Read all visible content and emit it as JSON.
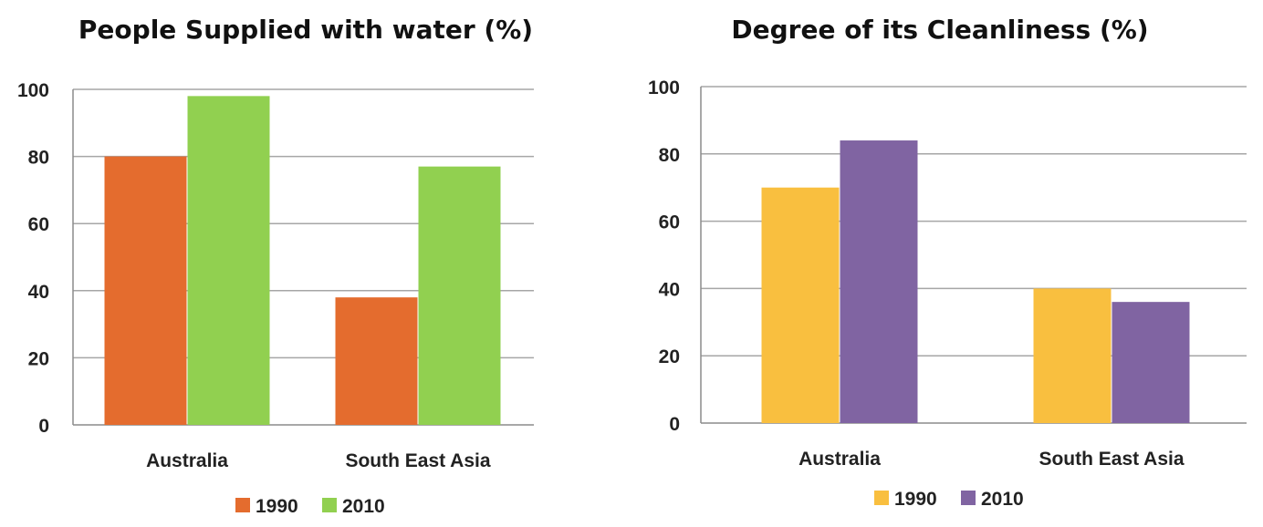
{
  "chart_data": [
    {
      "type": "bar",
      "title": "People Supplied with water (%)",
      "categories": [
        "Australia",
        "South East Asia"
      ],
      "series": [
        {
          "name": "1990",
          "color": "#e46c2e",
          "values": [
            80,
            38
          ]
        },
        {
          "name": "2010",
          "color": "#91d050",
          "values": [
            98,
            77
          ]
        }
      ],
      "ylim": [
        0,
        100
      ],
      "yticks": [
        0,
        20,
        40,
        60,
        80,
        100
      ],
      "ytick_labels": [
        "0",
        "20",
        "40",
        "60",
        "80",
        "100"
      ],
      "grid": true,
      "legend_position": "bottom"
    },
    {
      "type": "bar",
      "title": "Degree of its Cleanliness (%)",
      "categories": [
        "Australia",
        "South East Asia"
      ],
      "series": [
        {
          "name": "1990",
          "color": "#f9bf3f",
          "values": [
            70,
            40
          ]
        },
        {
          "name": "2010",
          "color": "#8064a2",
          "values": [
            84,
            36
          ]
        }
      ],
      "ylim": [
        0,
        100
      ],
      "yticks": [
        0,
        20,
        40,
        60,
        80,
        100
      ],
      "ytick_labels": [
        "0",
        "20",
        "40",
        "60",
        "80",
        "100"
      ],
      "grid": true,
      "legend_position": "bottom"
    }
  ]
}
